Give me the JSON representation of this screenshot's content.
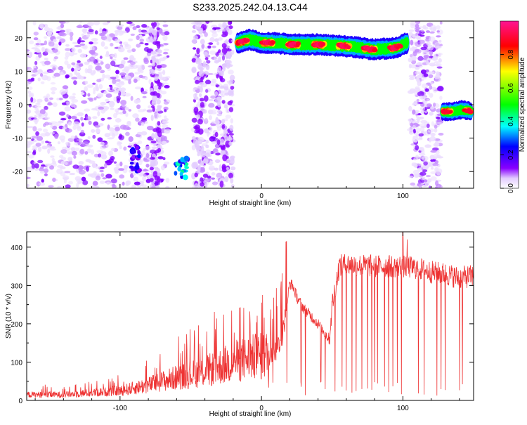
{
  "figure_title": "S233.2025.242.04.13.C44",
  "chart_data": [
    {
      "type": "heatmap",
      "title": "S233.2025.242.04.13.C44",
      "xlabel": "Height of straight line (km)",
      "ylabel": "Frequency (Hz)",
      "xlim": [
        -166,
        150
      ],
      "ylim": [
        -25,
        25
      ],
      "xticks": [
        -100,
        0,
        100
      ],
      "yticks": [
        -20,
        -10,
        0,
        10,
        20
      ],
      "grid": false,
      "colorbar": {
        "label": "Normalized spectral amplitude",
        "range": [
          0,
          1
        ],
        "ticks": [
          "0.0",
          "0.2",
          "0.4",
          "0.6",
          "0.8"
        ],
        "colormap": [
          "#ffffff",
          "#8800ff",
          "#0000ff",
          "#00ffff",
          "#00ff00",
          "#ffff00",
          "#ff0000",
          "#ff1493"
        ]
      },
      "features": [
        {
          "name": "noise-region-left",
          "x_range": [
            -166,
            -20
          ],
          "y_range": [
            -25,
            25
          ],
          "amplitude": 0.1
        },
        {
          "name": "blank-gap",
          "x_range": [
            -66,
            -48
          ],
          "y_range": [
            -25,
            25
          ],
          "amplitude": 0.0
        },
        {
          "name": "burst-a",
          "x": -89,
          "y": -16,
          "amplitude": 0.2
        },
        {
          "name": "burst-b",
          "x": -56,
          "y": -19,
          "amplitude": 0.35
        },
        {
          "name": "sustained-tone",
          "x": [
            -17,
            -8,
            0,
            10,
            20,
            40,
            60,
            80,
            95,
            103
          ],
          "y": [
            18.5,
            19.5,
            18.5,
            18.5,
            18.0,
            18.0,
            17.5,
            16.5,
            17.0,
            18.5
          ],
          "peak_amplitude": 0.95
        },
        {
          "name": "noise-region-right",
          "x_range": [
            105,
            127
          ],
          "y_range": [
            -25,
            25
          ],
          "amplitude": 0.1
        },
        {
          "name": "low-tone",
          "x": [
            128,
            135,
            142,
            148
          ],
          "y": [
            -2,
            -2,
            -1.5,
            -2
          ],
          "peak_amplitude": 0.9
        }
      ]
    },
    {
      "type": "line",
      "xlabel": "Height of straight line (km)",
      "ylabel": "SNR (10 * v/v)",
      "xlim": [
        -166,
        150
      ],
      "ylim": [
        0,
        440
      ],
      "xticks": [
        -100,
        0,
        100
      ],
      "yticks": [
        0,
        100,
        200,
        300,
        400
      ],
      "grid": false,
      "series": [
        {
          "name": "SNR",
          "color": "#ee3333",
          "x": [
            -166,
            -140,
            -120,
            -100,
            -80,
            -70,
            -60,
            -40,
            -20,
            -10,
            0,
            5,
            10,
            15,
            20,
            22,
            25,
            30,
            35,
            40,
            45,
            48,
            50,
            55,
            60,
            80,
            100,
            110,
            120,
            130,
            140,
            150
          ],
          "y": [
            15,
            15,
            20,
            25,
            40,
            50,
            60,
            75,
            100,
            110,
            115,
            120,
            130,
            170,
            305,
            300,
            270,
            240,
            220,
            200,
            175,
            160,
            250,
            350,
            355,
            350,
            350,
            345,
            335,
            330,
            320,
            325
          ],
          "dropout_x": [
            5,
            8,
            18,
            28,
            31,
            42,
            45,
            52,
            57,
            60,
            64,
            67,
            71,
            75,
            78,
            80,
            82,
            87,
            90,
            93,
            96,
            99,
            103,
            111,
            115,
            124,
            127,
            130,
            140,
            142
          ],
          "spike_x": [
            100,
            103
          ],
          "spike_y": [
            440,
            420
          ]
        }
      ]
    }
  ]
}
